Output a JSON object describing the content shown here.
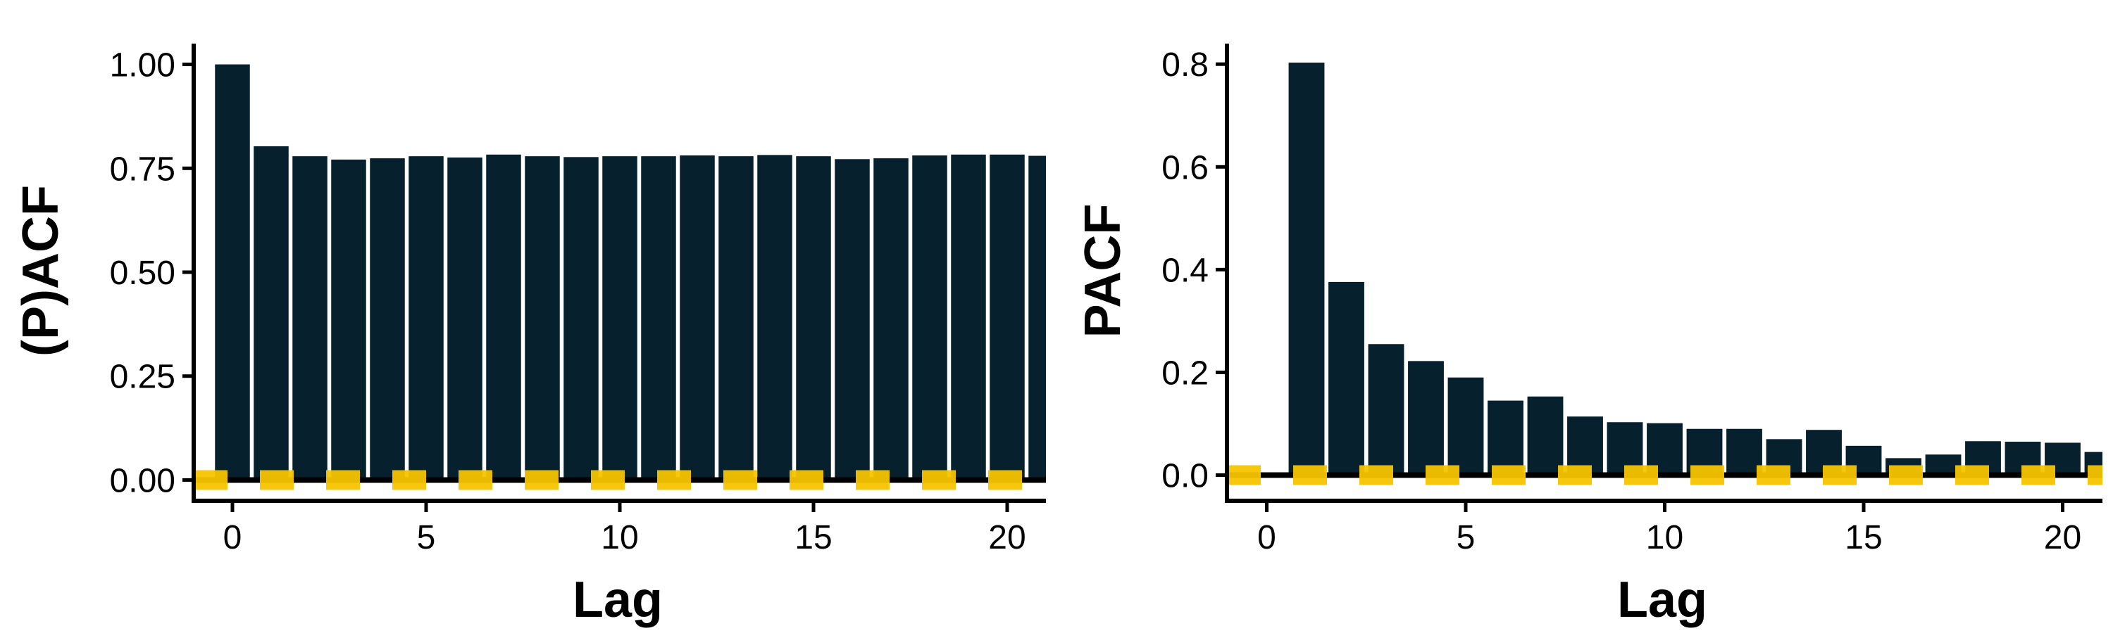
{
  "colors": {
    "bar": "#06202E",
    "baseline": "#000000",
    "ci": "#F5C400",
    "background": "#FFFFFF"
  },
  "chart_data": [
    {
      "type": "bar",
      "xlabel": "Lag",
      "ylabel": "(P)ACF",
      "xlim": [
        -1,
        21
      ],
      "ylim": [
        -0.05,
        1.05
      ],
      "xticks": [
        0,
        5,
        10,
        15,
        20
      ],
      "yticks": [
        0.0,
        0.25,
        0.5,
        0.75,
        1.0
      ],
      "ytick_labels": [
        "0.00",
        "0.25",
        "0.50",
        "0.75",
        "1.00"
      ],
      "ci_bound": 0.0,
      "grid": false,
      "x": [
        0,
        1,
        2,
        3,
        4,
        5,
        6,
        7,
        8,
        9,
        10,
        11,
        12,
        13,
        14,
        15,
        16,
        17,
        18,
        19,
        20,
        21
      ],
      "values": [
        1.0,
        0.803,
        0.779,
        0.771,
        0.774,
        0.779,
        0.776,
        0.783,
        0.779,
        0.777,
        0.779,
        0.779,
        0.781,
        0.779,
        0.782,
        0.779,
        0.772,
        0.774,
        0.781,
        0.783,
        0.783,
        0.78
      ]
    },
    {
      "type": "bar",
      "xlabel": "Lag",
      "ylabel": "PACF",
      "xlim": [
        -1,
        21
      ],
      "ylim": [
        -0.05,
        0.84
      ],
      "xticks": [
        0,
        5,
        10,
        15,
        20
      ],
      "yticks": [
        0.0,
        0.2,
        0.4,
        0.6,
        0.8
      ],
      "ytick_labels": [
        "0.0",
        "0.2",
        "0.4",
        "0.6",
        "0.8"
      ],
      "ci_bound": 0.0,
      "grid": false,
      "x": [
        1,
        2,
        3,
        4,
        5,
        6,
        7,
        8,
        9,
        10,
        11,
        12,
        13,
        14,
        15,
        16,
        17,
        18,
        19,
        20,
        21
      ],
      "values": [
        0.803,
        0.376,
        0.255,
        0.222,
        0.19,
        0.145,
        0.153,
        0.114,
        0.103,
        0.101,
        0.09,
        0.09,
        0.07,
        0.088,
        0.057,
        0.033,
        0.04,
        0.066,
        0.065,
        0.063,
        0.045
      ]
    }
  ]
}
